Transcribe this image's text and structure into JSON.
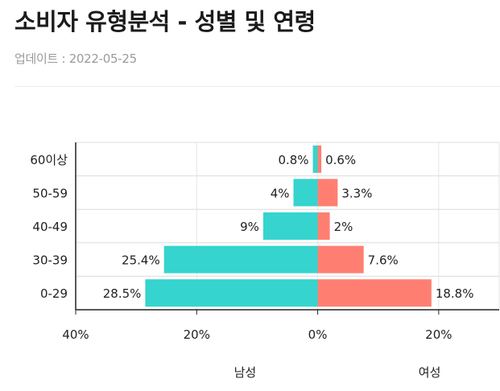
{
  "header": {
    "title": "소비자 유형분석 - 성별 및 연령",
    "updated": "업데이트 : 2022-05-25"
  },
  "chart_data": {
    "type": "bar",
    "orientation": "horizontal-diverging",
    "categories": [
      "60이상",
      "50-59",
      "40-49",
      "30-39",
      "0-29"
    ],
    "series": [
      {
        "name": "남성",
        "values": [
          0.8,
          4,
          9,
          25.4,
          28.5
        ],
        "labels": [
          "0.8%",
          "4%",
          "9%",
          "25.4%",
          "28.5%"
        ],
        "color": "#35d4ce"
      },
      {
        "name": "여성",
        "values": [
          0.6,
          3.3,
          2,
          7.6,
          18.8
        ],
        "labels": [
          "0.6%",
          "3.3%",
          "2%",
          "7.6%",
          "18.8%"
        ],
        "color": "#fe7f72"
      }
    ],
    "xlim": [
      -40,
      30
    ],
    "xticks": [
      -40,
      -20,
      0,
      20
    ],
    "xtick_labels": [
      "40%",
      "20%",
      "0%",
      "20%"
    ],
    "grid": true
  }
}
